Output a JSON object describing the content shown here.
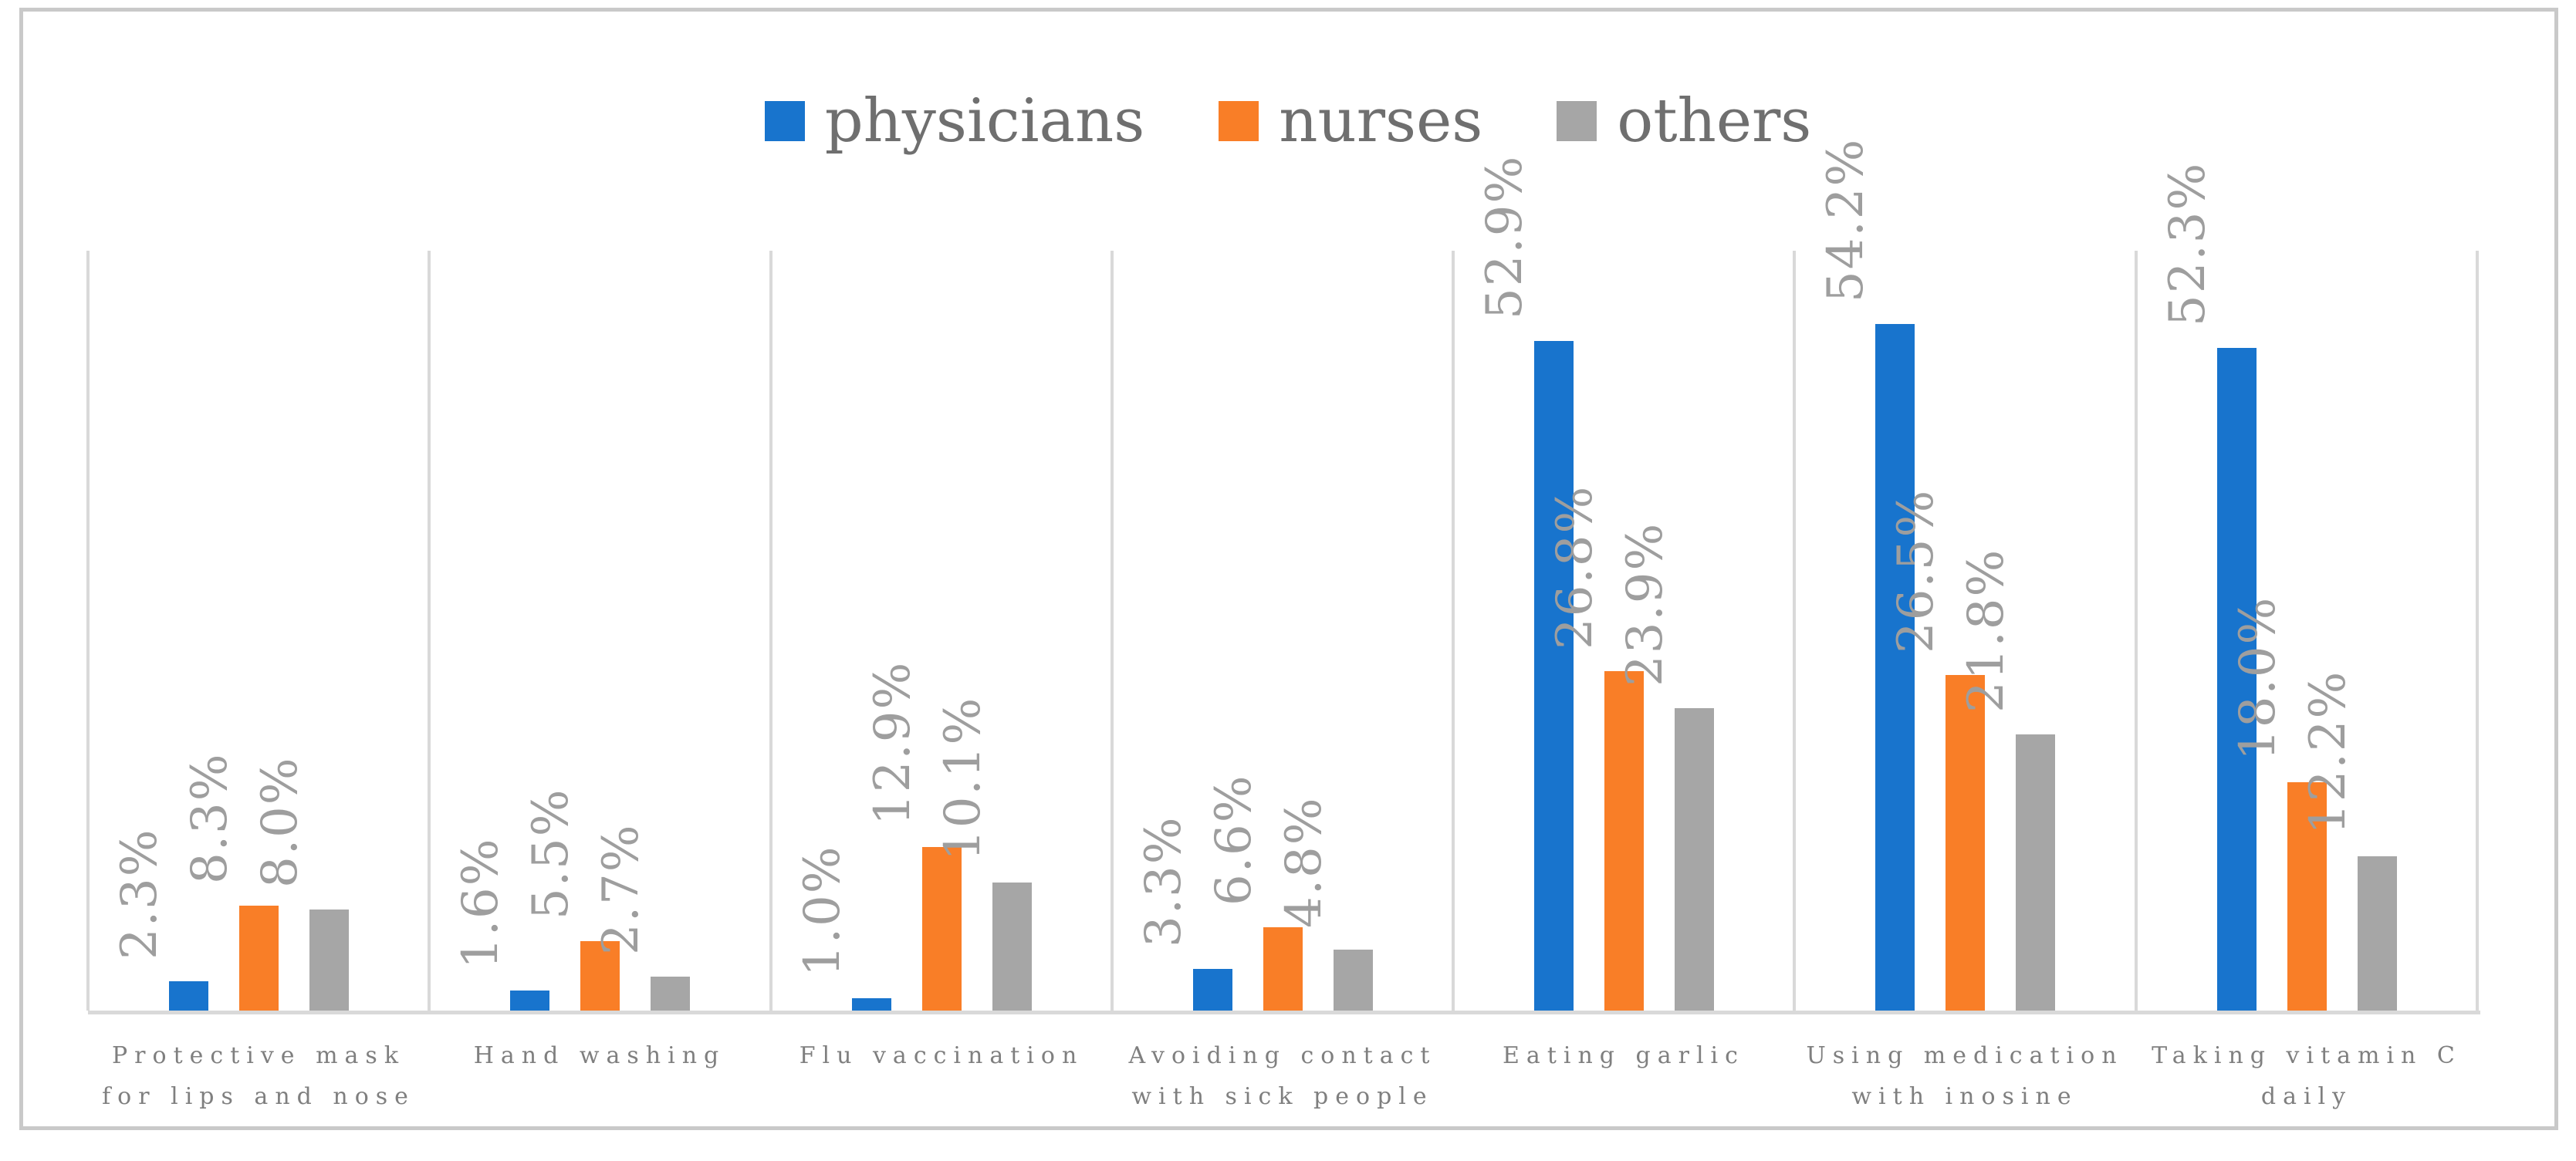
{
  "figure": {
    "kind": "grouped-bar-chart-figure",
    "background": "#ffffff",
    "frame_border_color": "#c9c9c9",
    "gridline_color": "#d9d9d9",
    "data_label_color": "#9e9e9e",
    "category_label_color": "#7f7f7f",
    "legend_text_color": "#6f6f6f"
  },
  "chart_data": {
    "type": "bar",
    "title": "",
    "xlabel": "",
    "ylabel": "",
    "ylim": [
      0,
      60
    ],
    "grid": "vertical category separators only, no horizontal gridlines, no y-axis labels",
    "legend_position": "top-center",
    "data_labels": "rotated 90deg, outside end of each bar, one decimal place with % suffix",
    "value_suffix": "%",
    "categories": [
      "Protective mask\nfor lips and nose",
      "Hand washing",
      "Flu vaccination",
      "Avoiding contact\nwith sick people",
      "Eating garlic",
      "Using medication\nwith inosine",
      "Taking vitamin C\ndaily"
    ],
    "series": [
      {
        "name": "physicians",
        "color": "#1874cd",
        "values": [
          2.3,
          1.6,
          1.0,
          3.3,
          52.9,
          54.2,
          52.3
        ]
      },
      {
        "name": "nurses",
        "color": "#f97e27",
        "values": [
          8.3,
          5.5,
          12.9,
          6.6,
          26.8,
          26.5,
          18.0
        ]
      },
      {
        "name": "others",
        "color": "#a6a6a6",
        "values": [
          8.0,
          2.7,
          10.1,
          4.8,
          23.9,
          21.8,
          12.2
        ]
      }
    ]
  }
}
